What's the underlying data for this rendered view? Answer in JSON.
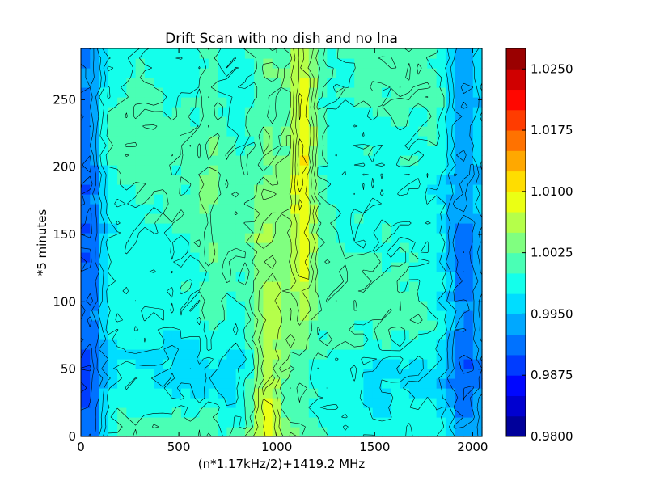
{
  "chart_data": {
    "type": "heatmap",
    "title": "Drift Scan with no dish and no lna",
    "xlabel": "(n*1.17kHz/2)+1419.2 MHz",
    "ylabel": "*5 minutes",
    "xlim": [
      0,
      2048
    ],
    "ylim": [
      0,
      288
    ],
    "x_ticks": [
      "0",
      "500",
      "1000",
      "1500",
      "2000"
    ],
    "y_ticks": [
      "0",
      "50",
      "100",
      "150",
      "200",
      "250"
    ],
    "x_tick_values": [
      0,
      500,
      1000,
      1500,
      2000
    ],
    "y_tick_values": [
      0,
      50,
      100,
      150,
      200,
      250
    ],
    "colorbar": {
      "min": 0.98,
      "max": 1.0275,
      "tick_labels": [
        "0.9800",
        "0.9875",
        "0.9950",
        "1.0025",
        "1.0100",
        "1.0175",
        "1.0250"
      ],
      "tick_values": [
        0.98,
        0.9875,
        0.995,
        1.0025,
        1.01,
        1.0175,
        1.025
      ],
      "levels": 19,
      "colormap": "jet"
    },
    "contour_lines": true,
    "features": [
      {
        "x_center": 30,
        "width": 80,
        "amplitude": -0.01
      },
      {
        "x_center": 1960,
        "width": 100,
        "amplitude": -0.008
      },
      {
        "x_center": 670,
        "width": 25,
        "amplitude": 0.004
      },
      {
        "x_center": 1130,
        "width": 60,
        "amplitude": 0.012,
        "y_peak": 210
      },
      {
        "x_center": 960,
        "width": 80,
        "amplitude": 0.01,
        "y_peak": 20
      }
    ]
  }
}
